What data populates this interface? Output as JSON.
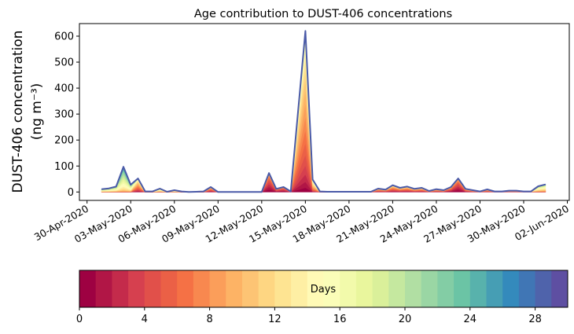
{
  "chart_data": {
    "type": "area",
    "title": "Age contribution to DUST-406 concentrations",
    "ylabel_line1": "DUST-406 concentration",
    "ylabel_line2": "(ng m⁻³)",
    "xlabel": "",
    "x_origin": "30-Apr-2020",
    "x_unit": "days since 30-Apr-2020",
    "xlim": [
      -0.5,
      33.2
    ],
    "ylim": [
      -32,
      648
    ],
    "yticks": [
      0,
      100,
      200,
      300,
      400,
      500,
      600
    ],
    "xticks": [
      {
        "day": 0,
        "label": "30-Apr-2020"
      },
      {
        "day": 3,
        "label": "03-May-2020"
      },
      {
        "day": 6,
        "label": "06-May-2020"
      },
      {
        "day": 9,
        "label": "09-May-2020"
      },
      {
        "day": 12,
        "label": "12-May-2020"
      },
      {
        "day": 15,
        "label": "15-May-2020"
      },
      {
        "day": 18,
        "label": "18-May-2020"
      },
      {
        "day": 21,
        "label": "21-May-2020"
      },
      {
        "day": 24,
        "label": "24-May-2020"
      },
      {
        "day": 27,
        "label": "27-May-2020"
      },
      {
        "day": 30,
        "label": "30-May-2020"
      },
      {
        "day": 33,
        "label": "02-Jun-2020"
      }
    ],
    "x_start_day": 1.0,
    "x_step_days": 0.5,
    "total": [
      11,
      14,
      21,
      97,
      28,
      52,
      2,
      2,
      13,
      1,
      7,
      2,
      0,
      1,
      2,
      19,
      0,
      0,
      0,
      0,
      0,
      0,
      0,
      73,
      12,
      19,
      2,
      311,
      620,
      48,
      2,
      1,
      1,
      1,
      1,
      1,
      1,
      1,
      13,
      9,
      26,
      16,
      21,
      12,
      16,
      4,
      11,
      7,
      19,
      52,
      12,
      7,
      2,
      10,
      2,
      2,
      5,
      5,
      2,
      2,
      22,
      29
    ],
    "mean_age_days": [
      16,
      16,
      16,
      18,
      16,
      8,
      14,
      14,
      14,
      14,
      14,
      14,
      14,
      14,
      14,
      5,
      10,
      10,
      10,
      10,
      10,
      10,
      10,
      1,
      2,
      1,
      5,
      8,
      8,
      10,
      10,
      10,
      10,
      10,
      10,
      10,
      10,
      10,
      6,
      6,
      6,
      6,
      6,
      6,
      6,
      6,
      6,
      6,
      3,
      1,
      5,
      6,
      6,
      6,
      6,
      6,
      6,
      6,
      6,
      6,
      14,
      14
    ],
    "outline_color": "#4a5aa8",
    "colorbar": {
      "label": "Days",
      "n_bins": 30,
      "range": [
        0,
        30
      ],
      "ticks": [
        0,
        4,
        8,
        12,
        16,
        20,
        24,
        28
      ],
      "colormap": [
        "#9e0142",
        "#d53e4f",
        "#f46d43",
        "#fdae61",
        "#fee08b",
        "#ffffbf",
        "#e6f598",
        "#abdda4",
        "#66c2a5",
        "#3288bd",
        "#5e4fa2"
      ]
    }
  }
}
